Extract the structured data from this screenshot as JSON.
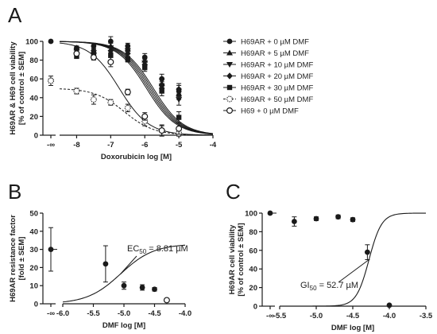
{
  "chart_data": [
    {
      "panel": "A",
      "type": "line",
      "xlabel": "Doxorubicin log [M]",
      "ylabel_line1": "H69AR & H69 cell viability",
      "ylabel_line2": "[% of control ± SEM]",
      "xlim": [
        -8.5,
        -4
      ],
      "ylim": [
        0,
        100
      ],
      "x_ticks": [
        -8,
        -7,
        -6,
        -5,
        -4
      ],
      "x_tick_labels": [
        "-8",
        "-7",
        "-6",
        "-5",
        "-4"
      ],
      "x_inf_label": "-∞",
      "y_ticks": [
        0,
        20,
        40,
        60,
        80,
        100
      ],
      "y_tick_labels": [
        "0",
        "20",
        "40",
        "60",
        "80",
        "100"
      ],
      "legend_position": "right",
      "series": [
        {
          "name": "H69AR + 0 µM DMF",
          "marker": "circle-filled",
          "x": [
            -8,
            -7.5,
            -7,
            -6.5,
            -6,
            -5.5,
            -5
          ],
          "y": [
            93,
            95,
            100,
            95,
            83,
            60,
            47
          ],
          "curve": {
            "top": 100,
            "bottom": 0,
            "logEC50": -5.9,
            "hill": 1
          }
        },
        {
          "name": "H69AR + 5 µM DMF",
          "marker": "triangle-up",
          "x": [
            -8,
            -7.5,
            -7,
            -6.5,
            -6,
            -5.5,
            -5
          ],
          "y": [
            93,
            90,
            95,
            92,
            80,
            55,
            44
          ],
          "curve": {
            "top": 100,
            "bottom": 0,
            "logEC50": -5.85,
            "hill": 1
          }
        },
        {
          "name": "H69AR + 10 µM DMF",
          "marker": "triangle-down",
          "x": [
            -8,
            -7.5,
            -7,
            -6.5,
            -6,
            -5.5,
            -5
          ],
          "y": [
            90,
            88,
            93,
            90,
            77,
            52,
            38
          ],
          "curve": {
            "top": 100,
            "bottom": 0,
            "logEC50": -5.8,
            "hill": 1
          }
        },
        {
          "name": "H69AR + 20 µM DMF",
          "marker": "diamond",
          "x": [
            -8,
            -7.5,
            -7,
            -6.5,
            -6,
            -5.5,
            -5
          ],
          "y": [
            88,
            87,
            90,
            87,
            75,
            50,
            49
          ],
          "curve": {
            "top": 100,
            "bottom": 0,
            "logEC50": -5.75,
            "hill": 1
          }
        },
        {
          "name": "H69AR + 30 µM DMF",
          "marker": "square-filled",
          "x": [
            -8,
            -7.5,
            -7,
            -6.5,
            -6,
            -5.5,
            -5
          ],
          "y": [
            84,
            84,
            85,
            81,
            72,
            47,
            19
          ],
          "curve": {
            "top": 100,
            "bottom": 0,
            "logEC50": -5.95,
            "hill": 1
          }
        },
        {
          "name": "H69AR + 50 µM DMF",
          "marker": "circle-dotted",
          "dashed": true,
          "x": [
            -9,
            -8,
            -7.5,
            -7,
            -6.5,
            -6,
            -5.5,
            -5
          ],
          "y": [
            58,
            47,
            38,
            35,
            29,
            15,
            5,
            2
          ],
          "curve": {
            "top": 50,
            "bottom": 0,
            "logEC50": -6.6,
            "hill": 1
          }
        },
        {
          "name": "H69 + 0 µM DMF",
          "marker": "circle-open",
          "x": [
            -8,
            -7.5,
            -7,
            -6.5,
            -6,
            -5.5,
            -5
          ],
          "y": [
            87,
            83,
            78,
            46,
            20,
            5,
            7
          ],
          "curve": {
            "top": 100,
            "bottom": 0,
            "logEC50": -6.75,
            "hill": 1
          }
        }
      ],
      "inf_points": [
        {
          "y": 100,
          "marker": "circle-filled"
        },
        {
          "y": 58,
          "marker": "circle-dotted",
          "err": 5
        }
      ],
      "errors": [
        2,
        3,
        5,
        3,
        4,
        5,
        6
      ]
    },
    {
      "panel": "B",
      "type": "scatter",
      "xlabel": "DMF log [M]",
      "ylabel_line1": "H69AR resistance factor",
      "ylabel_line2": "[fold ± SEM]",
      "xlim": [
        -6,
        -4
      ],
      "ylim": [
        0,
        50
      ],
      "x_ticks": [
        -6,
        -5.5,
        -5,
        -4.5,
        -4
      ],
      "x_tick_labels": [
        "-6.0",
        "-5.5",
        "-5.0",
        "-4.5",
        "-4.0"
      ],
      "x_inf_label": "-∞",
      "y_ticks": [
        0,
        10,
        20,
        30,
        40,
        50
      ],
      "y_tick_labels": [
        "0",
        "10",
        "20",
        "30",
        "40",
        "50"
      ],
      "points": [
        {
          "x": -5.3,
          "y": 22,
          "err": 10,
          "marker": "circle-filled"
        },
        {
          "x": -5.0,
          "y": 10,
          "err": 2,
          "marker": "circle-filled"
        },
        {
          "x": -4.7,
          "y": 9,
          "err": 1.5,
          "marker": "circle-filled"
        },
        {
          "x": -4.5,
          "y": 8,
          "err": 1,
          "marker": "circle-filled"
        },
        {
          "x": -4.3,
          "y": 2,
          "err": 0,
          "marker": "circle-open"
        }
      ],
      "inf_point": {
        "y": 30,
        "err": 12
      },
      "curve": {
        "top": 33,
        "bottom": 0,
        "logEC50": -5.055,
        "hill": -1.6
      },
      "annotation": {
        "prefix": "EC",
        "sub": "50",
        "suffix": " = 8.81 µM"
      }
    },
    {
      "panel": "C",
      "type": "scatter",
      "xlabel": "DMF log [M]",
      "ylabel_line1": "H69AR cell viability",
      "ylabel_line2": "[% of control ± SEM]",
      "xlim": [
        -5.5,
        -3.5
      ],
      "ylim": [
        0,
        100
      ],
      "x_ticks": [
        -5.5,
        -5,
        -4.5,
        -4,
        -3.5
      ],
      "x_tick_labels": [
        "-5.5",
        "-5.0",
        "-4.5",
        "-4.0",
        "-3.5"
      ],
      "x_inf_label": "-∞",
      "y_ticks": [
        0,
        20,
        40,
        60,
        80,
        100
      ],
      "y_tick_labels": [
        "0",
        "20",
        "40",
        "60",
        "80",
        "100"
      ],
      "points": [
        {
          "x": -5.3,
          "y": 91,
          "err": 5
        },
        {
          "x": -5.0,
          "y": 94,
          "err": 2
        },
        {
          "x": -4.7,
          "y": 96,
          "err": 2
        },
        {
          "x": -4.5,
          "y": 93,
          "err": 2
        },
        {
          "x": -4.3,
          "y": 58,
          "err": 8
        },
        {
          "x": -4.0,
          "y": 1,
          "err": 1
        }
      ],
      "inf_point": {
        "y": 100,
        "err": 0
      },
      "curve": {
        "top": 100,
        "bottom": 0,
        "logEC50": -4.278,
        "hill": -5
      },
      "annotation": {
        "prefix": "GI",
        "sub": "50",
        "suffix": " = 52.7 µM"
      }
    }
  ],
  "panel_labels": [
    "A",
    "B",
    "C"
  ],
  "colors": {
    "ink": "#1a1a1a"
  }
}
